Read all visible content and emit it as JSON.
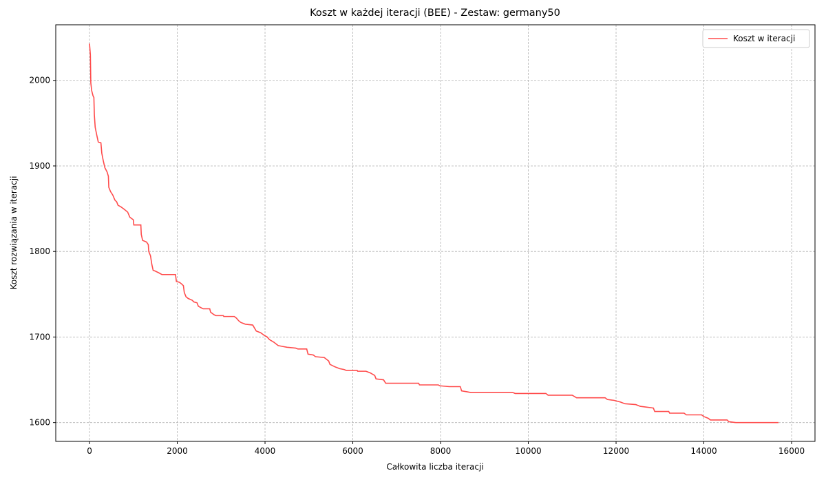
{
  "chart_data": {
    "type": "line",
    "title": "Koszt w każdej iteracji (BEE) - Zestaw: germany50",
    "x_label": "Całkowita liczba iteracji",
    "y_label": "Koszt rozwiązania w iteracji",
    "xlim": [
      -769,
      16533
    ],
    "ylim": [
      1578,
      2065
    ],
    "xticks": [
      0,
      2000,
      4000,
      6000,
      8000,
      10000,
      12000,
      14000,
      16000
    ],
    "yticks": [
      1600,
      1700,
      1800,
      1900,
      2000
    ],
    "grid": true,
    "legend": "upper right",
    "series": [
      {
        "name": "Koszt w iteracji",
        "color": "#ff4b4b",
        "x": [
          0,
          20,
          30,
          50,
          80,
          100,
          110,
          130,
          170,
          200,
          260,
          280,
          310,
          350,
          400,
          430,
          440,
          480,
          530,
          580,
          620,
          650,
          720,
          800,
          870,
          920,
          1000,
          1010,
          1170,
          1180,
          1210,
          1300,
          1340,
          1350,
          1390,
          1420,
          1450,
          1500,
          1580,
          1650,
          1960,
          1980,
          2050,
          2100,
          2140,
          2160,
          2200,
          2250,
          2340,
          2380,
          2450,
          2480,
          2550,
          2590,
          2740,
          2760,
          2840,
          2880,
          3050,
          3060,
          3300,
          3350,
          3400,
          3450,
          3550,
          3720,
          3800,
          3900,
          3980,
          4050,
          4100,
          4200,
          4300,
          4400,
          4500,
          4700,
          4750,
          4950,
          4980,
          5100,
          5150,
          5350,
          5450,
          5480,
          5600,
          5700,
          5800,
          5850,
          6100,
          6110,
          6300,
          6400,
          6500,
          6530,
          6700,
          6750,
          7500,
          7520,
          7950,
          7980,
          8200,
          8450,
          8480,
          8600,
          8700,
          9650,
          9700,
          10400,
          10450,
          11000,
          11100,
          11750,
          11800,
          11950,
          12100,
          12200,
          12450,
          12550,
          12700,
          12850,
          12880,
          13200,
          13220,
          13550,
          13600,
          13950,
          14000,
          14100,
          14150,
          14530,
          14570,
          14730,
          15700
        ],
        "values": [
          2043,
          2030,
          1997,
          1988,
          1982,
          1980,
          1960,
          1945,
          1935,
          1928,
          1927,
          1915,
          1907,
          1898,
          1893,
          1888,
          1875,
          1870,
          1866,
          1860,
          1858,
          1854,
          1852,
          1849,
          1846,
          1840,
          1837,
          1831,
          1831,
          1820,
          1813,
          1811,
          1808,
          1800,
          1795,
          1785,
          1778,
          1777,
          1775,
          1773,
          1773,
          1765,
          1764,
          1762,
          1760,
          1752,
          1747,
          1745,
          1743,
          1741,
          1740,
          1736,
          1734,
          1733,
          1733,
          1729,
          1726,
          1725,
          1725,
          1724,
          1724,
          1722,
          1719,
          1717,
          1715,
          1714,
          1707,
          1705,
          1702,
          1700,
          1697,
          1694,
          1690,
          1689,
          1688,
          1687,
          1686,
          1686,
          1680,
          1679,
          1677,
          1676,
          1672,
          1668,
          1665,
          1663,
          1662,
          1661,
          1661,
          1660,
          1660,
          1658,
          1655,
          1651,
          1650,
          1646,
          1646,
          1644,
          1644,
          1643,
          1642,
          1642,
          1637,
          1636,
          1635,
          1635,
          1634,
          1634,
          1632,
          1632,
          1629,
          1629,
          1627,
          1626,
          1624,
          1622,
          1621,
          1619,
          1618,
          1617,
          1613,
          1613,
          1611,
          1611,
          1609,
          1609,
          1607,
          1605,
          1603,
          1603,
          1601,
          1600,
          1600
        ]
      }
    ]
  }
}
